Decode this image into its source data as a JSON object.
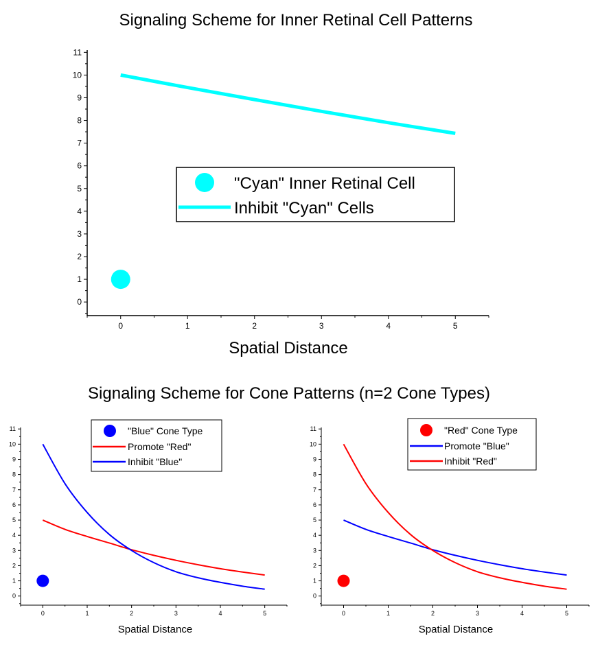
{
  "colors": {
    "cyan": "#00ffff",
    "blue": "#0000ff",
    "red": "#ff0000",
    "axis": "#000000"
  },
  "section_title": "Signaling Scheme for Cone Patterns (n=2 Cone Types)",
  "chart_data": [
    {
      "type": "line",
      "title": "Signaling Scheme for Inner Retinal Cell Patterns",
      "xlabel": "Spatial Distance",
      "ylabel": "",
      "xlim": [
        -0.5,
        5.5
      ],
      "ylim": [
        -0.6,
        11.1
      ],
      "x_ticks": [
        "0",
        "1",
        "2",
        "3",
        "4",
        "5"
      ],
      "y_ticks": [
        "0",
        "1",
        "2",
        "3",
        "4",
        "5",
        "6",
        "7",
        "8",
        "9",
        "10",
        "11"
      ],
      "legend_position": "center-right",
      "series": [
        {
          "name": "\"Cyan\" Inner Retinal Cell",
          "kind": "marker",
          "color": "#00ffff",
          "x": [
            0
          ],
          "y": [
            1
          ]
        },
        {
          "name": "Inhibit \"Cyan\" Cells",
          "kind": "line",
          "color": "#00ffff",
          "x": [
            0,
            1,
            2,
            3,
            4,
            5
          ],
          "y": [
            10,
            9.45,
            8.92,
            8.4,
            7.9,
            7.43
          ]
        }
      ]
    },
    {
      "type": "line",
      "title": "",
      "xlabel": "Spatial Distance",
      "ylabel": "",
      "xlim": [
        -0.5,
        5.5
      ],
      "ylim": [
        -0.6,
        11.1
      ],
      "x_ticks": [
        "0",
        "1",
        "2",
        "3",
        "4",
        "5"
      ],
      "y_ticks": [
        "0",
        "1",
        "2",
        "3",
        "4",
        "5",
        "6",
        "7",
        "8",
        "9",
        "10",
        "11"
      ],
      "legend_position": "top-center",
      "series": [
        {
          "name": "\"Blue\" Cone Type",
          "kind": "marker",
          "color": "#0000ff",
          "x": [
            0
          ],
          "y": [
            1
          ]
        },
        {
          "name": "Promote \"Red\"",
          "kind": "line",
          "color": "#ff0000",
          "x": [
            0,
            0.5,
            1,
            1.5,
            2,
            2.5,
            3,
            3.5,
            4,
            4.5,
            5
          ],
          "y": [
            5.0,
            4.39,
            3.92,
            3.49,
            3.05,
            2.68,
            2.35,
            2.06,
            1.8,
            1.58,
            1.38
          ]
        },
        {
          "name": "Inhibit \"Blue\"",
          "kind": "line",
          "color": "#0000ff",
          "x": [
            0,
            0.5,
            1,
            1.5,
            2,
            2.5,
            3,
            3.5,
            4,
            4.5,
            5
          ],
          "y": [
            10.0,
            7.4,
            5.5,
            4.05,
            3.0,
            2.2,
            1.6,
            1.2,
            0.9,
            0.65,
            0.45
          ]
        }
      ]
    },
    {
      "type": "line",
      "title": "",
      "xlabel": "Spatial Distance",
      "ylabel": "",
      "xlim": [
        -0.5,
        5.5
      ],
      "ylim": [
        -0.6,
        11.1
      ],
      "x_ticks": [
        "0",
        "1",
        "2",
        "3",
        "4",
        "5"
      ],
      "y_ticks": [
        "0",
        "1",
        "2",
        "3",
        "4",
        "5",
        "6",
        "7",
        "8",
        "9",
        "10",
        "11"
      ],
      "legend_position": "top-center",
      "series": [
        {
          "name": "\"Red\" Cone Type",
          "kind": "marker",
          "color": "#ff0000",
          "x": [
            0
          ],
          "y": [
            1
          ]
        },
        {
          "name": "Promote \"Blue\"",
          "kind": "line",
          "color": "#0000ff",
          "x": [
            0,
            0.5,
            1,
            1.5,
            2,
            2.5,
            3,
            3.5,
            4,
            4.5,
            5
          ],
          "y": [
            5.0,
            4.39,
            3.92,
            3.49,
            3.05,
            2.68,
            2.35,
            2.06,
            1.8,
            1.58,
            1.38
          ]
        },
        {
          "name": "Inhibit \"Red\"",
          "kind": "line",
          "color": "#ff0000",
          "x": [
            0,
            0.5,
            1,
            1.5,
            2,
            2.5,
            3,
            3.5,
            4,
            4.5,
            5
          ],
          "y": [
            10.0,
            7.4,
            5.5,
            4.05,
            3.0,
            2.2,
            1.6,
            1.2,
            0.9,
            0.65,
            0.45
          ]
        }
      ]
    }
  ]
}
